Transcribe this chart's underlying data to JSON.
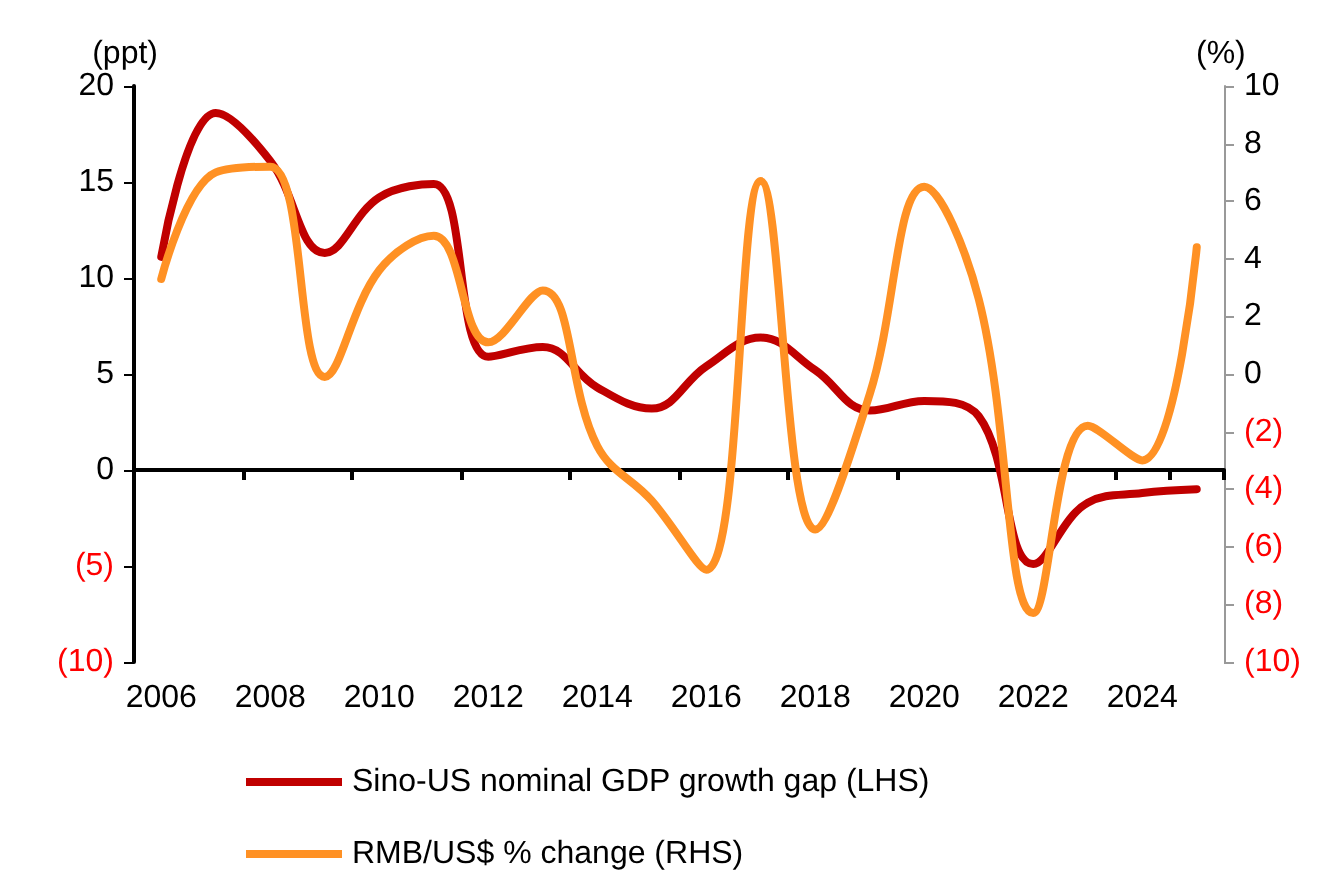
{
  "chart_data": {
    "type": "line",
    "categories": [
      "2006",
      null,
      "2008",
      null,
      "2010",
      null,
      "2012",
      null,
      "2014",
      null,
      "2016",
      null,
      "2018",
      null,
      "2020",
      null,
      "2022",
      null,
      "2024",
      null
    ],
    "ylabel": "(ppt)",
    "y2label": "(%)",
    "ylim": [
      -10,
      20
    ],
    "yticks": [
      {
        "value": -10,
        "label": "(10)"
      },
      {
        "value": -5,
        "label": "(5)"
      },
      0,
      5,
      10,
      15,
      20
    ],
    "y2lim": [
      -10,
      10
    ],
    "y2ticks": [
      {
        "value": -10,
        "label": "(10)"
      },
      {
        "value": -8,
        "label": "(8)"
      },
      {
        "value": -6,
        "label": "(6)"
      },
      {
        "value": -4,
        "label": "(4)"
      },
      {
        "value": -2,
        "label": "(2)"
      },
      0,
      2,
      4,
      6,
      8,
      10
    ],
    "legend": "bottom",
    "marker": "none",
    "series": [
      {
        "name": "Sino-US nominal GDP growth gap (LHS)",
        "color": "#c00000",
        "values": [
          11.1,
          18.6,
          16.1,
          11.3,
          14.2,
          14.9,
          5.9,
          6.4,
          4.3,
          3.2,
          5.4,
          6.9,
          5.2,
          3.1,
          3.6,
          2.8,
          -4.9,
          -1.7,
          -1.2,
          -1.0
        ]
      },
      {
        "name": "RMB/US$ % change (RHS)",
        "color": "#ff9124",
        "axis": "y2",
        "values": [
          3.3,
          7.0,
          7.2,
          -0.1,
          3.6,
          4.8,
          1.1,
          2.9,
          -2.5,
          -4.4,
          -6.8,
          6.7,
          -5.4,
          -0.7,
          6.5,
          2.6,
          -8.3,
          -1.8,
          -3.0,
          4.4
        ]
      }
    ]
  }
}
